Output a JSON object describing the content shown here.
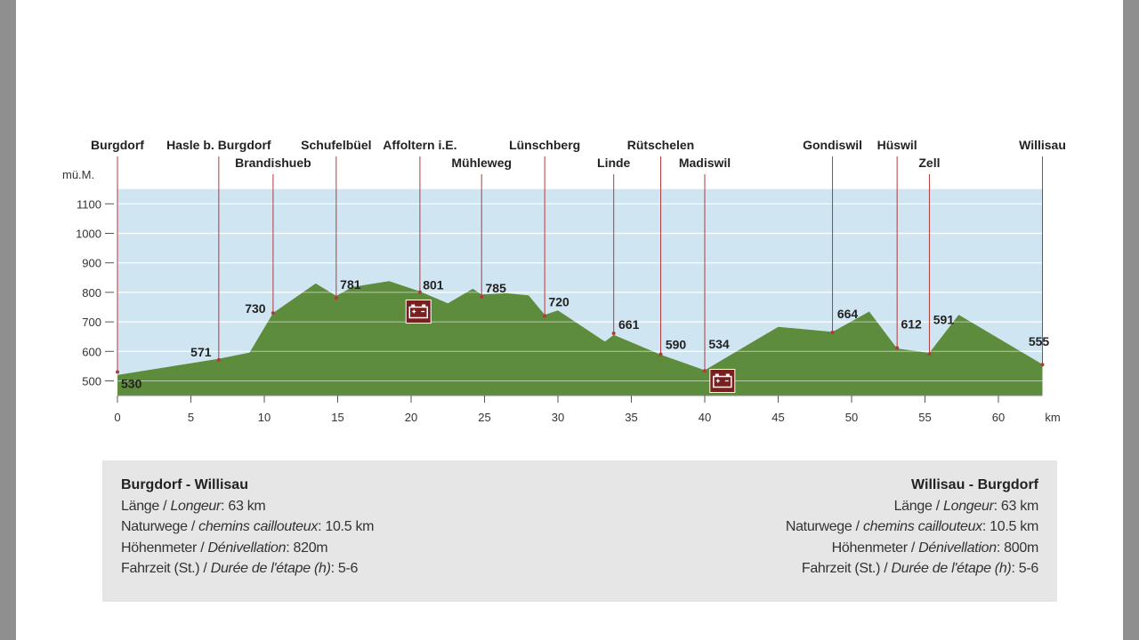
{
  "chart_data": {
    "type": "area",
    "ylabel": "mü.M.",
    "xlabel": "km",
    "xlim": [
      0,
      63
    ],
    "ylim": [
      450,
      1150
    ],
    "x_ticks": [
      0,
      5,
      10,
      15,
      20,
      25,
      30,
      35,
      40,
      45,
      50,
      55,
      60
    ],
    "y_ticks": [
      500,
      600,
      700,
      800,
      900,
      1000,
      1100
    ],
    "profile": {
      "x": [
        0,
        6.9,
        9,
        10.6,
        13.5,
        14.9,
        16,
        18.5,
        20.6,
        22.5,
        24.2,
        24.8,
        26.5,
        28,
        29.1,
        30,
        33.2,
        33.8,
        37,
        40,
        45,
        48.7,
        51.2,
        53.1,
        55.3,
        57.3,
        63
      ],
      "y": [
        520,
        575,
        596,
        730,
        830,
        788,
        818,
        838,
        803,
        763,
        812,
        793,
        797,
        790,
        724,
        739,
        633,
        656,
        589,
        536,
        683,
        666,
        735,
        610,
        595,
        724,
        556
      ]
    },
    "places": [
      {
        "name": "Burgdorf",
        "km": 0,
        "elev": "530",
        "row": 1
      },
      {
        "name": "Hasle b. Burgdorf",
        "km": 6.9,
        "elev": "571",
        "row": 1
      },
      {
        "name": "Brandishueb",
        "km": 10.6,
        "elev": "730",
        "row": 2
      },
      {
        "name": "Schufelbüel",
        "km": 14.9,
        "elev": "781",
        "row": 1
      },
      {
        "name": "Affoltern i.E.",
        "km": 20.6,
        "elev": "801",
        "row": 1
      },
      {
        "name": "Mühleweg",
        "km": 24.8,
        "elev": "785",
        "row": 2
      },
      {
        "name": "Lünschberg",
        "km": 29.1,
        "elev": "720",
        "row": 1
      },
      {
        "name": "Linde",
        "km": 33.8,
        "elev": "661",
        "row": 2
      },
      {
        "name": "Rütschelen",
        "km": 37,
        "elev": "590",
        "row": 1
      },
      {
        "name": "Madiswil",
        "km": 40,
        "elev": "534",
        "row": 2
      },
      {
        "name": "Gondiswil",
        "km": 48.7,
        "elev": "664",
        "row": 1
      },
      {
        "name": "Hüswil",
        "km": 53.1,
        "elev": "612",
        "row": 1
      },
      {
        "name": "Zell",
        "km": 55.3,
        "elev": "591",
        "row": 2
      },
      {
        "name": "Willisau",
        "km": 63,
        "elev": "555",
        "row": 1
      }
    ],
    "markers": [
      {
        "icon": "battery-charging-icon",
        "km": 20.5,
        "elev": 735
      },
      {
        "icon": "battery-charging-icon",
        "km": 41.2,
        "elev": 500
      }
    ],
    "colors": {
      "sky": "#cfe6f2",
      "terrain": "#5e8c3d",
      "place_line": "#b23a3a",
      "marker_fill": "#7a1f1f"
    }
  },
  "info": {
    "left": {
      "title": "Burgdorf - Willisau",
      "rows": [
        {
          "de": "Länge / ",
          "fr": "Longeur",
          "val": ": 63 km"
        },
        {
          "de": "Naturwege / ",
          "fr": "chemins caillouteux",
          "val": ": 10.5 km"
        },
        {
          "de": "Höhenmeter / ",
          "fr": "Dénivellation",
          "val": ": 820m"
        },
        {
          "de": "Fahrzeit (St.) / ",
          "fr": "Durée de l'étape (h)",
          "val": ": 5-6"
        }
      ]
    },
    "right": {
      "title": "Willisau - Burgdorf",
      "rows": [
        {
          "de": "Länge / ",
          "fr": "Longeur",
          "val": ": 63 km"
        },
        {
          "de": "Naturwege / ",
          "fr": "chemins caillouteux",
          "val": ": 10.5 km"
        },
        {
          "de": "Höhenmeter / ",
          "fr": "Dénivellation",
          "val": ": 800m"
        },
        {
          "de": "Fahrzeit (St.) / ",
          "fr": "Durée de l'étape (h)",
          "val": ": 5-6"
        }
      ]
    }
  }
}
